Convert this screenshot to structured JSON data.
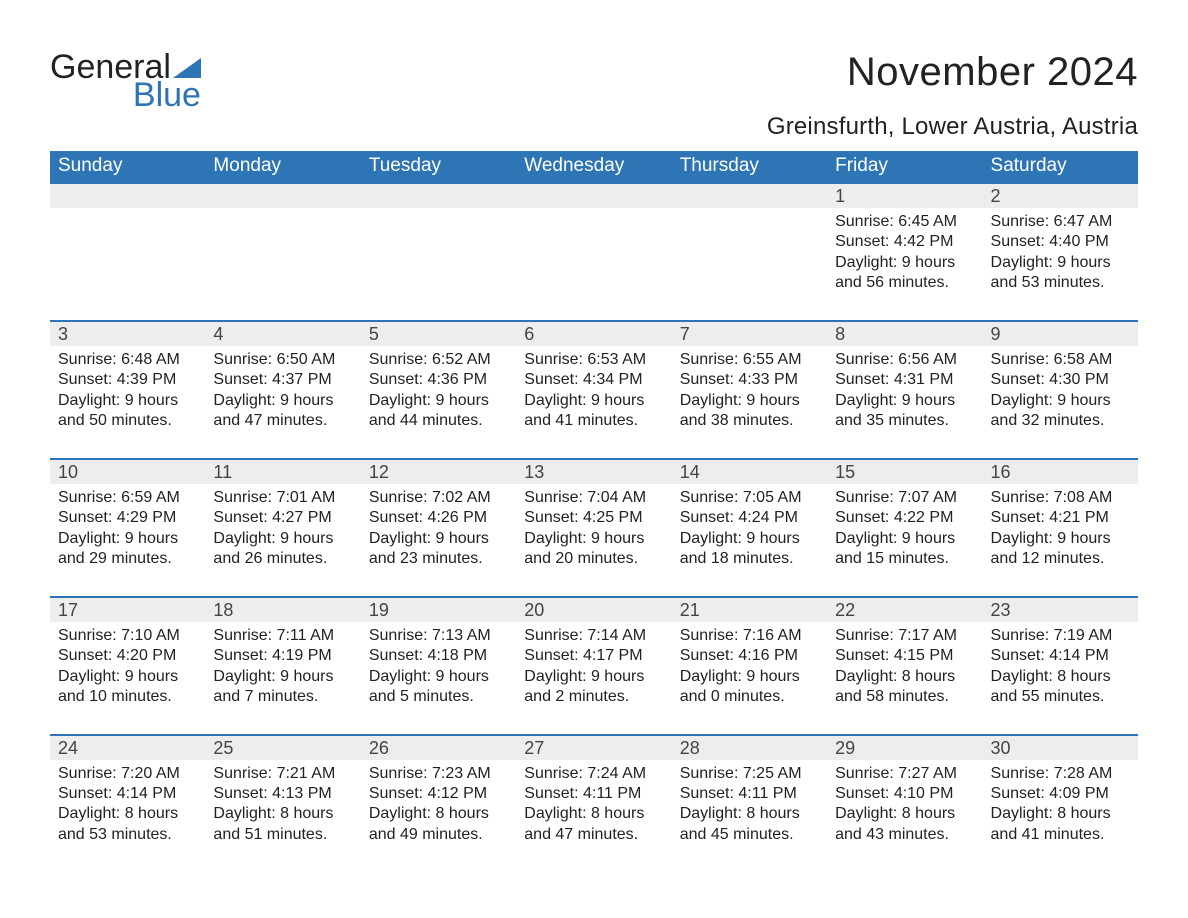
{
  "brand": {
    "part1": "General",
    "part2": "Blue",
    "color_text": "#222222",
    "color_accent": "#2e75b6"
  },
  "header": {
    "month_title": "November 2024",
    "location": "Greinsfurth, Lower Austria, Austria"
  },
  "styling": {
    "header_bg": "#2e75b6",
    "header_text": "#ffffff",
    "daynum_bg": "#ededed",
    "row_border": "#2e75b6",
    "body_text": "#222222",
    "page_bg": "#ffffff",
    "th_fontsize": 19,
    "daynum_fontsize": 18,
    "detail_fontsize": 16,
    "title_fontsize": 40,
    "location_fontsize": 24
  },
  "weekdays": [
    "Sunday",
    "Monday",
    "Tuesday",
    "Wednesday",
    "Thursday",
    "Friday",
    "Saturday"
  ],
  "weeks": [
    {
      "nums": [
        "",
        "",
        "",
        "",
        "",
        "1",
        "2"
      ],
      "details": [
        "",
        "",
        "",
        "",
        "",
        "Sunrise: 6:45 AM\nSunset: 4:42 PM\nDaylight: 9 hours\nand 56 minutes.",
        "Sunrise: 6:47 AM\nSunset: 4:40 PM\nDaylight: 9 hours\nand 53 minutes."
      ]
    },
    {
      "nums": [
        "3",
        "4",
        "5",
        "6",
        "7",
        "8",
        "9"
      ],
      "details": [
        "Sunrise: 6:48 AM\nSunset: 4:39 PM\nDaylight: 9 hours\nand 50 minutes.",
        "Sunrise: 6:50 AM\nSunset: 4:37 PM\nDaylight: 9 hours\nand 47 minutes.",
        "Sunrise: 6:52 AM\nSunset: 4:36 PM\nDaylight: 9 hours\nand 44 minutes.",
        "Sunrise: 6:53 AM\nSunset: 4:34 PM\nDaylight: 9 hours\nand 41 minutes.",
        "Sunrise: 6:55 AM\nSunset: 4:33 PM\nDaylight: 9 hours\nand 38 minutes.",
        "Sunrise: 6:56 AM\nSunset: 4:31 PM\nDaylight: 9 hours\nand 35 minutes.",
        "Sunrise: 6:58 AM\nSunset: 4:30 PM\nDaylight: 9 hours\nand 32 minutes."
      ]
    },
    {
      "nums": [
        "10",
        "11",
        "12",
        "13",
        "14",
        "15",
        "16"
      ],
      "details": [
        "Sunrise: 6:59 AM\nSunset: 4:29 PM\nDaylight: 9 hours\nand 29 minutes.",
        "Sunrise: 7:01 AM\nSunset: 4:27 PM\nDaylight: 9 hours\nand 26 minutes.",
        "Sunrise: 7:02 AM\nSunset: 4:26 PM\nDaylight: 9 hours\nand 23 minutes.",
        "Sunrise: 7:04 AM\nSunset: 4:25 PM\nDaylight: 9 hours\nand 20 minutes.",
        "Sunrise: 7:05 AM\nSunset: 4:24 PM\nDaylight: 9 hours\nand 18 minutes.",
        "Sunrise: 7:07 AM\nSunset: 4:22 PM\nDaylight: 9 hours\nand 15 minutes.",
        "Sunrise: 7:08 AM\nSunset: 4:21 PM\nDaylight: 9 hours\nand 12 minutes."
      ]
    },
    {
      "nums": [
        "17",
        "18",
        "19",
        "20",
        "21",
        "22",
        "23"
      ],
      "details": [
        "Sunrise: 7:10 AM\nSunset: 4:20 PM\nDaylight: 9 hours\nand 10 minutes.",
        "Sunrise: 7:11 AM\nSunset: 4:19 PM\nDaylight: 9 hours\nand 7 minutes.",
        "Sunrise: 7:13 AM\nSunset: 4:18 PM\nDaylight: 9 hours\nand 5 minutes.",
        "Sunrise: 7:14 AM\nSunset: 4:17 PM\nDaylight: 9 hours\nand 2 minutes.",
        "Sunrise: 7:16 AM\nSunset: 4:16 PM\nDaylight: 9 hours\nand 0 minutes.",
        "Sunrise: 7:17 AM\nSunset: 4:15 PM\nDaylight: 8 hours\nand 58 minutes.",
        "Sunrise: 7:19 AM\nSunset: 4:14 PM\nDaylight: 8 hours\nand 55 minutes."
      ]
    },
    {
      "nums": [
        "24",
        "25",
        "26",
        "27",
        "28",
        "29",
        "30"
      ],
      "details": [
        "Sunrise: 7:20 AM\nSunset: 4:14 PM\nDaylight: 8 hours\nand 53 minutes.",
        "Sunrise: 7:21 AM\nSunset: 4:13 PM\nDaylight: 8 hours\nand 51 minutes.",
        "Sunrise: 7:23 AM\nSunset: 4:12 PM\nDaylight: 8 hours\nand 49 minutes.",
        "Sunrise: 7:24 AM\nSunset: 4:11 PM\nDaylight: 8 hours\nand 47 minutes.",
        "Sunrise: 7:25 AM\nSunset: 4:11 PM\nDaylight: 8 hours\nand 45 minutes.",
        "Sunrise: 7:27 AM\nSunset: 4:10 PM\nDaylight: 8 hours\nand 43 minutes.",
        "Sunrise: 7:28 AM\nSunset: 4:09 PM\nDaylight: 8 hours\nand 41 minutes."
      ]
    }
  ]
}
